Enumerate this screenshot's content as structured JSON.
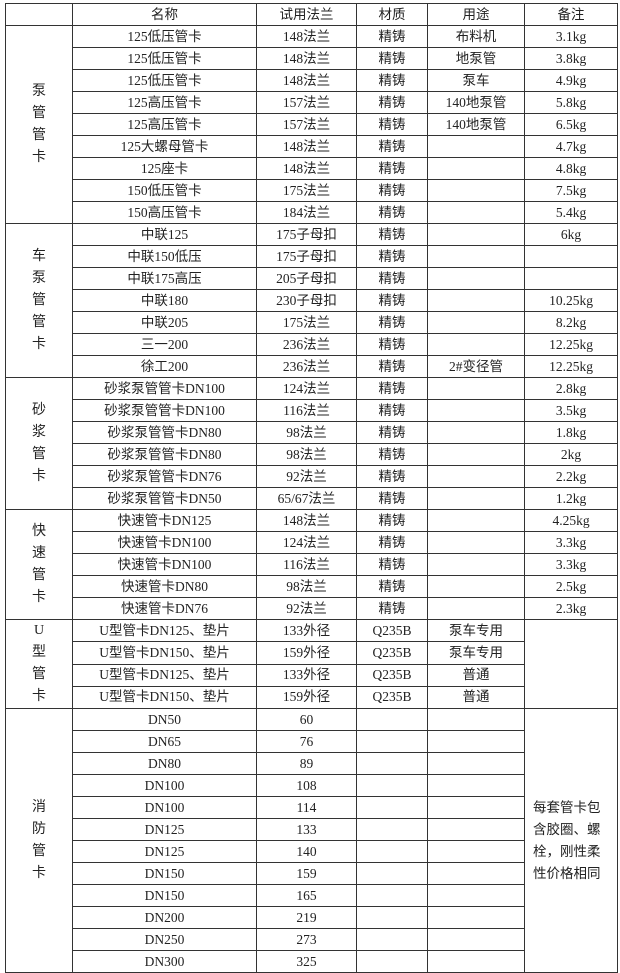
{
  "header": [
    "",
    "名称",
    "试用法兰",
    "材质",
    "用途",
    "备注"
  ],
  "sections": [
    {
      "category": "泵管管卡",
      "rows": [
        [
          "125低压管卡",
          "148法兰",
          "精铸",
          "布料机",
          "3.1kg"
        ],
        [
          "125低压管卡",
          "148法兰",
          "精铸",
          "地泵管",
          "3.8kg"
        ],
        [
          "125低压管卡",
          "148法兰",
          "精铸",
          "泵车",
          "4.9kg"
        ],
        [
          "125高压管卡",
          "157法兰",
          "精铸",
          "140地泵管",
          "5.8kg"
        ],
        [
          "125高压管卡",
          "157法兰",
          "精铸",
          "140地泵管",
          "6.5kg"
        ],
        [
          "125大螺母管卡",
          "148法兰",
          "精铸",
          "",
          "4.7kg"
        ],
        [
          "125座卡",
          "148法兰",
          "精铸",
          "",
          "4.8kg"
        ],
        [
          "150低压管卡",
          "175法兰",
          "精铸",
          "",
          "7.5kg"
        ],
        [
          "150高压管卡",
          "184法兰",
          "精铸",
          "",
          "5.4kg"
        ]
      ]
    },
    {
      "category": "车泵管管卡",
      "rows": [
        [
          "中联125",
          "175子母扣",
          "精铸",
          "",
          "6kg"
        ],
        [
          "中联150低压",
          "175子母扣",
          "精铸",
          "",
          ""
        ],
        [
          "中联175高压",
          "205子母扣",
          "精铸",
          "",
          ""
        ],
        [
          "中联180",
          "230子母扣",
          "精铸",
          "",
          "10.25kg"
        ],
        [
          "中联205",
          "175法兰",
          "精铸",
          "",
          "8.2kg"
        ],
        [
          "三一200",
          "236法兰",
          "精铸",
          "",
          "12.25kg"
        ],
        [
          "徐工200",
          "236法兰",
          "精铸",
          "2#变径管",
          "12.25kg"
        ]
      ]
    },
    {
      "category": "砂浆管卡",
      "rows": [
        [
          "砂浆泵管管卡DN100",
          "124法兰",
          "精铸",
          "",
          "2.8kg"
        ],
        [
          "砂浆泵管管卡DN100",
          "116法兰",
          "精铸",
          "",
          "3.5kg"
        ],
        [
          "砂浆泵管管卡DN80",
          "98法兰",
          "精铸",
          "",
          "1.8kg"
        ],
        [
          "砂浆泵管管卡DN80",
          "98法兰",
          "精铸",
          "",
          "2kg"
        ],
        [
          "砂浆泵管管卡DN76",
          "92法兰",
          "精铸",
          "",
          "2.2kg"
        ],
        [
          "砂浆泵管管卡DN50",
          "65/67法兰",
          "精铸",
          "",
          "1.2kg"
        ]
      ]
    },
    {
      "category": "快速管卡",
      "rows": [
        [
          "快速管卡DN125",
          "148法兰",
          "精铸",
          "",
          "4.25kg"
        ],
        [
          "快速管卡DN100",
          "124法兰",
          "精铸",
          "",
          "3.3kg"
        ],
        [
          "快速管卡DN100",
          "116法兰",
          "精铸",
          "",
          "3.3kg"
        ],
        [
          "快速管卡DN80",
          "98法兰",
          "精铸",
          "",
          "2.5kg"
        ],
        [
          "快速管卡DN76",
          "92法兰",
          "精铸",
          "",
          "2.3kg"
        ]
      ]
    },
    {
      "category": "U型管卡",
      "merged_note": "",
      "rows": [
        [
          "U型管卡DN125、垫片",
          "133外径",
          "Q235B",
          "泵车专用"
        ],
        [
          "U型管卡DN150、垫片",
          "159外径",
          "Q235B",
          "泵车专用"
        ],
        [
          "U型管卡DN125、垫片",
          "133外径",
          "Q235B",
          "普通"
        ],
        [
          "U型管卡DN150、垫片",
          "159外径",
          "Q235B",
          "普通"
        ]
      ]
    },
    {
      "category": "消防管卡",
      "merged_note": "每套管卡包含胶圈、螺栓，刚性柔性价格相同",
      "rows": [
        [
          "DN50",
          "60",
          "",
          ""
        ],
        [
          "DN65",
          "76",
          "",
          ""
        ],
        [
          "DN80",
          "89",
          "",
          ""
        ],
        [
          "DN100",
          "108",
          "",
          ""
        ],
        [
          "DN100",
          "114",
          "",
          ""
        ],
        [
          "DN125",
          "133",
          "",
          ""
        ],
        [
          "DN125",
          "140",
          "",
          ""
        ],
        [
          "DN150",
          "159",
          "",
          ""
        ],
        [
          "DN150",
          "165",
          "",
          ""
        ],
        [
          "DN200",
          "219",
          "",
          ""
        ],
        [
          "DN250",
          "273",
          "",
          ""
        ],
        [
          "DN300",
          "325",
          "",
          ""
        ]
      ]
    }
  ]
}
